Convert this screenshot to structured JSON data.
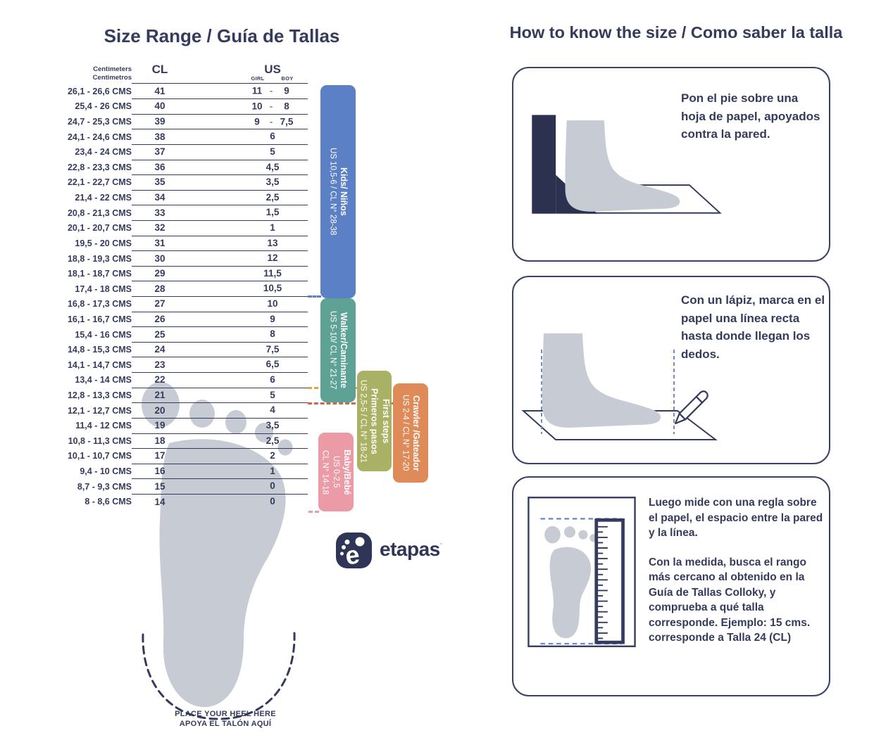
{
  "left": {
    "title": "Size Range / Guía de Tallas",
    "table": {
      "header": {
        "cm_line1": "Centimeters",
        "cm_line2": "Centimetros",
        "cl": "CL",
        "us": "US",
        "girl": "GIRL",
        "boy": "BOY"
      },
      "rows": [
        {
          "cm": "26,1 - 26,6 CMS",
          "cl": "41",
          "girl": "11",
          "boy": "9"
        },
        {
          "cm": "25,4 - 26 CMS",
          "cl": "40",
          "girl": "10",
          "boy": "8"
        },
        {
          "cm": "24,7 - 25,3 CMS",
          "cl": "39",
          "girl": "9",
          "boy": "7,5"
        },
        {
          "cm": "24,1 - 24,6 CMS",
          "cl": "38",
          "us": "6"
        },
        {
          "cm": "23,4 - 24 CMS",
          "cl": "37",
          "us": "5"
        },
        {
          "cm": "22,8 - 23,3 CMS",
          "cl": "36",
          "us": "4,5"
        },
        {
          "cm": "22,1 - 22,7 CMS",
          "cl": "35",
          "us": "3,5"
        },
        {
          "cm": "21,4 - 22 CMS",
          "cl": "34",
          "us": "2,5"
        },
        {
          "cm": "20,8 - 21,3 CMS",
          "cl": "33",
          "us": "1,5"
        },
        {
          "cm": "20,1 - 20,7 CMS",
          "cl": "32",
          "us": "1"
        },
        {
          "cm": "19,5 - 20 CMS",
          "cl": "31",
          "us": "13"
        },
        {
          "cm": "18,8 - 19,3 CMS",
          "cl": "30",
          "us": "12"
        },
        {
          "cm": "18,1 - 18,7 CMS",
          "cl": "29",
          "us": "11,5"
        },
        {
          "cm": "17,4 - 18 CMS",
          "cl": "28",
          "us": "10,5"
        },
        {
          "cm": "16,8 - 17,3 CMS",
          "cl": "27",
          "us": "10"
        },
        {
          "cm": "16,1 - 16,7 CMS",
          "cl": "26",
          "us": "9"
        },
        {
          "cm": "15,4 - 16 CMS",
          "cl": "25",
          "us": "8"
        },
        {
          "cm": "14,8 - 15,3 CMS",
          "cl": "24",
          "us": "7,5"
        },
        {
          "cm": "14,1 - 14,7 CMS",
          "cl": "23",
          "us": "6,5"
        },
        {
          "cm": "13,4 - 14 CMS",
          "cl": "22",
          "us": "6"
        },
        {
          "cm": "12,8 - 13,3 CMS",
          "cl": "21",
          "us": "5"
        },
        {
          "cm": "12,1 - 12,7 CMS",
          "cl": "20",
          "us": "4"
        },
        {
          "cm": "11,4 - 12 CMS",
          "cl": "19",
          "us": "3,5"
        },
        {
          "cm": "10,8 - 11,3 CMS",
          "cl": "18",
          "us": "2,5"
        },
        {
          "cm": "10,1 - 10,7 CMS",
          "cl": "17",
          "us": "2"
        },
        {
          "cm": "9,4 - 10 CMS",
          "cl": "16",
          "us": "1"
        },
        {
          "cm": "8,7 - 9,3 CMS",
          "cl": "15",
          "us": "0"
        },
        {
          "cm": "8 - 8,6 CMS",
          "cl": "14",
          "us": "0"
        }
      ]
    },
    "categories": [
      {
        "name": "Kids/ Niños",
        "range": "US 10,5-6 / CL N° 28-38",
        "color": "#5C80C6"
      },
      {
        "name": "Walker/Caminante",
        "range": "US 5-10/ CL N° 21-27",
        "color": "#5EA295"
      },
      {
        "name": "First steps",
        "name2": "Primeros pasos",
        "range": "US 2,5-5 / CL N° 18-21",
        "color": "#A9B264"
      },
      {
        "name": "Crawler /Gateador",
        "range": "US 2-4 / CL N° 17-20",
        "color": "#DE8B59"
      },
      {
        "name": "Baby/Bebé",
        "range": "US 0-2,5",
        "range2": "CL N° 14-18",
        "color": "#EB9BA6"
      }
    ],
    "connector_colors": {
      "kids": "#5C80C6",
      "first_steps": "#D9A843",
      "crawler": "#CA6A4D",
      "baby": "#EB9BA6"
    },
    "heel_note_line1": "PLACE YOUR HEEL HERE",
    "heel_note_line2": "APOYA EL TALÓN AQUÍ",
    "logo": {
      "word": "etapas",
      "icon": "footprint-e-icon",
      "mark": "˙"
    }
  },
  "right": {
    "title": "How to know the size / Como saber la talla",
    "steps": [
      {
        "text": "Pon el pie sobre una hoja de papel, apoyados contra la pared."
      },
      {
        "text": "Con un lápiz, marca en el papel una línea recta hasta donde llegan los dedos."
      },
      {
        "text1": "Luego mide con una regla sobre el papel, el espacio entre la pared y la línea.",
        "text2": "Con la medida, busca el rango más cercano al obtenido en la Guía de Tallas Colloky, y comprueba a qué talla corresponde. Ejemplo: 15 cms. corresponde a Talla 24 (CL)"
      }
    ]
  },
  "colors": {
    "navy": "#343B5C",
    "wall": "#2C3150",
    "foot_gray": "#C7CCD4",
    "ruler_dash_blue": "#6C8CC8"
  }
}
